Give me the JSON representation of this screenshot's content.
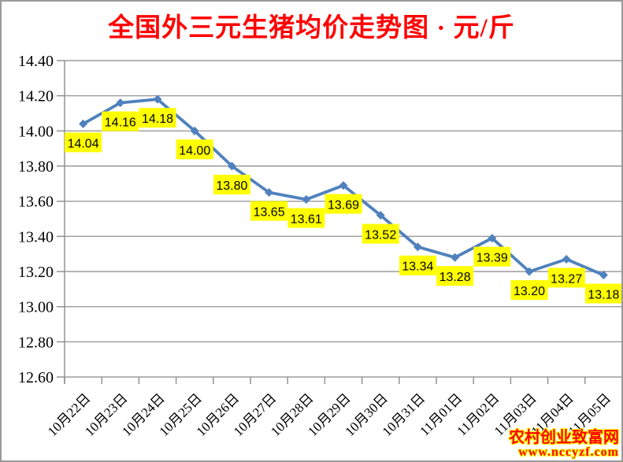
{
  "page": {
    "background": "#ffffff",
    "border_color": "#9a9a9a"
  },
  "title": {
    "text": "全国外三元生猪均价走势图 · 元/斤",
    "color": "#ff0000"
  },
  "watermark": {
    "site_name": "农村创业致富网",
    "site_url": "www.nccyzf.com",
    "text_color": "#ff0000",
    "outline_color": "#ffff00"
  },
  "chart_data": {
    "type": "line",
    "title": "全国外三元生猪均价走势图 · 元/斤",
    "unit": "元/斤",
    "categories": [
      "10月22日",
      "10月23日",
      "10月24日",
      "10月25日",
      "10月26日",
      "10月27日",
      "10月28日",
      "10月29日",
      "10月30日",
      "10月31日",
      "11月01日",
      "11月02日",
      "11月03日",
      "11月04日",
      "11月05日"
    ],
    "values": [
      14.04,
      14.16,
      14.18,
      14.0,
      13.8,
      13.65,
      13.61,
      13.69,
      13.52,
      13.34,
      13.28,
      13.39,
      13.2,
      13.27,
      13.18
    ],
    "data_labels": [
      "14.04",
      "14.16",
      "14.18",
      "14.00",
      "13.80",
      "13.65",
      "13.61",
      "13.69",
      "13.52",
      "13.34",
      "13.28",
      "13.39",
      "13.20",
      "13.27",
      "13.18"
    ],
    "ylim": [
      12.6,
      14.4
    ],
    "ytick_step": 0.2,
    "ytick_labels": [
      "14.40",
      "14.20",
      "14.00",
      "13.80",
      "13.60",
      "13.40",
      "13.20",
      "13.00",
      "12.80",
      "12.60"
    ],
    "grid": true,
    "legend": "none",
    "xlabel": "",
    "ylabel": "",
    "style": {
      "line_color": "#4F81BD",
      "marker": "diamond",
      "label_bg": "#FFFF00",
      "label_text_color": "#000000",
      "grid_color": "#9b9b9b",
      "axis_color": "#8c8c8c",
      "tick_label_color": "#000000"
    }
  }
}
